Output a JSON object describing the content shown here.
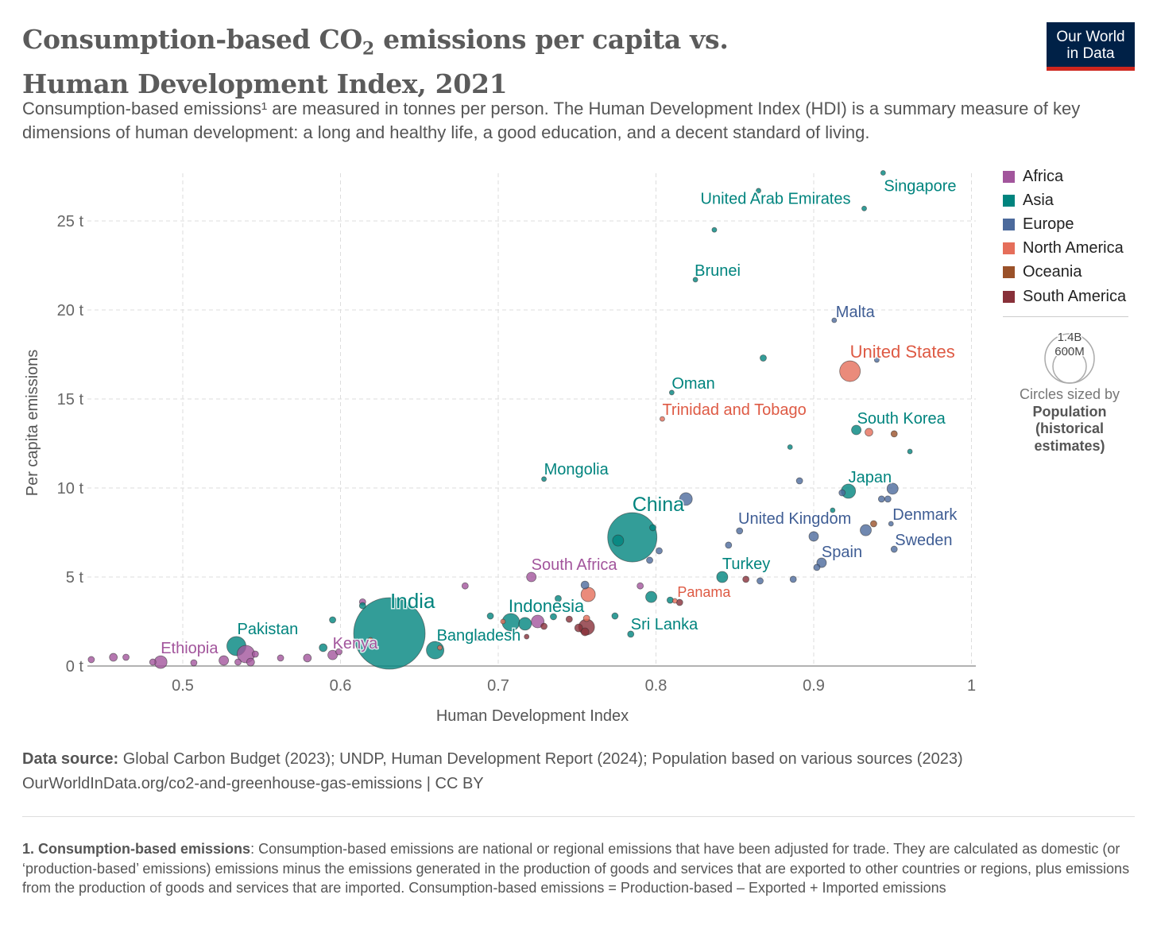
{
  "header": {
    "title_part1": "Consumption-based CO",
    "title_sub": "2",
    "title_part2": " emissions per capita vs. Human Development Index, 2021",
    "subtitle": "Consumption-based emissions¹ are measured in tonnes per person. The Human Development Index (HDI) is a summary measure of key dimensions of human development: a long and healthy life, a good education, and a decent standard of living.",
    "logo_line1": "Our World",
    "logo_line2": "in Data"
  },
  "legend": {
    "items": [
      {
        "label": "Africa",
        "color": "#a2559c"
      },
      {
        "label": "Asia",
        "color": "#00847e"
      },
      {
        "label": "Europe",
        "color": "#4c6a9c"
      },
      {
        "label": "North America",
        "color": "#e56e5a"
      },
      {
        "label": "Oceania",
        "color": "#9a5129"
      },
      {
        "label": "South America",
        "color": "#883039"
      }
    ],
    "size_big": "1.4B",
    "size_small": "600M",
    "size_caption": "Circles sized by",
    "size_var1": "Population",
    "size_var2": "(historical",
    "size_var3": "estimates)"
  },
  "footer": {
    "source_label": "Data source:",
    "source_text": " Global Carbon Budget (2023); UNDP, Human Development Report (2024); Population based on various sources (2023)",
    "url_line": "OurWorldInData.org/co2-and-greenhouse-gas-emissions | CC BY",
    "footnote_label": "1. Consumption-based emissions",
    "footnote_text": ": Consumption-based emissions are national or regional emissions that have been adjusted for trade. They are calculated as domestic (or ‘production-based’ emissions) emissions minus the emissions generated in the production of goods and services that are exported to other countries or regions, plus emissions from the production of goods and services that are imported. Consumption-based emissions = Production-based – Exported + Imported emissions"
  },
  "chart_data": {
    "type": "scatter",
    "xlabel": "Human Development Index",
    "ylabel": "Per capita emissions",
    "xlim": [
      0.445,
      1.0
    ],
    "ylim": [
      0,
      27.8
    ],
    "xticks": [
      0.5,
      0.6,
      0.7,
      0.8,
      0.9,
      1.0
    ],
    "xtick_labels": [
      "0.5",
      "0.6",
      "0.7",
      "0.8",
      "0.9",
      "1"
    ],
    "yticks": [
      0,
      5,
      10,
      15,
      20,
      25
    ],
    "ytick_labels": [
      "0 t",
      "5 t",
      "10 t",
      "15 t",
      "20 t",
      "25 t"
    ],
    "grid": true,
    "legend_position": "right",
    "size_variable": "population (millions, estimated)",
    "points": [
      {
        "r": "Africa",
        "x": 0.442,
        "y": 0.36,
        "p": 11
      },
      {
        "r": "Africa",
        "x": 0.456,
        "y": 0.49,
        "p": 17
      },
      {
        "r": "Africa",
        "x": 0.464,
        "y": 0.49,
        "p": 11
      },
      {
        "r": "Africa",
        "x": 0.481,
        "y": 0.22,
        "p": 11
      },
      {
        "r": "Africa",
        "x": 0.486,
        "y": 0.22,
        "p": 44,
        "n": "Ethiopia"
      },
      {
        "r": "Africa",
        "x": 0.507,
        "y": 0.18,
        "p": 11
      },
      {
        "r": "Africa",
        "x": 0.526,
        "y": 0.31,
        "p": 25
      },
      {
        "r": "Africa",
        "x": 0.535,
        "y": 0.22,
        "p": 11
      },
      {
        "r": "Africa",
        "x": 0.54,
        "y": 0.67,
        "p": 84
      },
      {
        "r": "Africa",
        "x": 0.543,
        "y": 0.22,
        "p": 17
      },
      {
        "r": "Africa",
        "x": 0.546,
        "y": 0.67,
        "p": 11
      },
      {
        "r": "Africa",
        "x": 0.562,
        "y": 0.45,
        "p": 11
      },
      {
        "r": "Africa",
        "x": 0.579,
        "y": 0.45,
        "p": 17
      },
      {
        "r": "Africa",
        "x": 0.595,
        "y": 0.62,
        "p": 25,
        "n": "Kenya"
      },
      {
        "r": "Africa",
        "x": 0.599,
        "y": 0.8,
        "p": 11
      },
      {
        "r": "Africa",
        "x": 0.614,
        "y": 3.6,
        "p": 11
      },
      {
        "r": "Africa",
        "x": 0.679,
        "y": 4.5,
        "p": 11
      },
      {
        "r": "Africa",
        "x": 0.687,
        "y": 1.56,
        "p": 6
      },
      {
        "r": "Africa",
        "x": 0.721,
        "y": 5.0,
        "p": 25,
        "n": "South Africa"
      },
      {
        "r": "Africa",
        "x": 0.725,
        "y": 2.5,
        "p": 44
      },
      {
        "r": "Africa",
        "x": 0.79,
        "y": 4.5,
        "p": 11
      },
      {
        "r": "Asia",
        "x": 0.534,
        "y": 1.12,
        "p": 100,
        "n": "Pakistan"
      },
      {
        "r": "Asia",
        "x": 0.589,
        "y": 1.03,
        "p": 17
      },
      {
        "r": "Asia",
        "x": 0.595,
        "y": 2.59,
        "p": 11
      },
      {
        "r": "Asia",
        "x": 0.614,
        "y": 3.39,
        "p": 11
      },
      {
        "r": "Asia",
        "x": 0.631,
        "y": 1.83,
        "p": 1400,
        "n": "India"
      },
      {
        "r": "Asia",
        "x": 0.66,
        "y": 0.89,
        "p": 84,
        "n": "Bangladesh"
      },
      {
        "r": "Asia",
        "x": 0.695,
        "y": 2.81,
        "p": 11
      },
      {
        "r": "Asia",
        "x": 0.708,
        "y": 2.46,
        "p": 84,
        "n": "Indonesia"
      },
      {
        "r": "Asia",
        "x": 0.717,
        "y": 2.37,
        "p": 44
      },
      {
        "r": "Asia",
        "x": 0.735,
        "y": 2.77,
        "p": 11
      },
      {
        "r": "Asia",
        "x": 0.738,
        "y": 3.79,
        "p": 11
      },
      {
        "r": "Asia",
        "x": 0.774,
        "y": 2.81,
        "p": 11
      },
      {
        "r": "Asia",
        "x": 0.784,
        "y": 1.79,
        "p": 11,
        "n": "Sri Lanka"
      },
      {
        "r": "Asia",
        "x": 0.797,
        "y": 3.88,
        "p": 34
      },
      {
        "r": "Asia",
        "x": 0.809,
        "y": 3.7,
        "p": 11
      },
      {
        "r": "Asia",
        "x": 0.785,
        "y": 7.23,
        "p": 664,
        "n": "China"
      },
      {
        "r": "Asia",
        "x": 0.776,
        "y": 7.05,
        "p": 34
      },
      {
        "r": "Asia",
        "x": 0.798,
        "y": 7.77,
        "p": 11
      },
      {
        "r": "Asia",
        "x": 0.729,
        "y": 10.5,
        "p": 6,
        "n": "Mongolia"
      },
      {
        "r": "Asia",
        "x": 0.81,
        "y": 15.36,
        "p": 6,
        "n": "Oman"
      },
      {
        "r": "Asia",
        "x": 0.825,
        "y": 21.7,
        "p": 6,
        "n": "Brunei"
      },
      {
        "r": "Asia",
        "x": 0.837,
        "y": 24.5,
        "p": 6
      },
      {
        "r": "Asia",
        "x": 0.865,
        "y": 26.7,
        "p": 6
      },
      {
        "r": "Asia",
        "x": 0.932,
        "y": 25.7,
        "p": 6,
        "n": "United Arab Emirates"
      },
      {
        "r": "Asia",
        "x": 0.944,
        "y": 27.7,
        "p": 6,
        "n": "Singapore"
      },
      {
        "r": "Asia",
        "x": 0.868,
        "y": 17.3,
        "p": 11
      },
      {
        "r": "Asia",
        "x": 0.885,
        "y": 12.3,
        "p": 6
      },
      {
        "r": "Asia",
        "x": 0.927,
        "y": 13.26,
        "p": 25,
        "n": "South Korea"
      },
      {
        "r": "Asia",
        "x": 0.961,
        "y": 12.05,
        "p": 6
      },
      {
        "r": "Asia",
        "x": 0.922,
        "y": 9.82,
        "p": 56,
        "n": "Japan"
      },
      {
        "r": "Asia",
        "x": 0.912,
        "y": 8.75,
        "p": 6
      },
      {
        "r": "Asia",
        "x": 0.842,
        "y": 5.0,
        "p": 34,
        "n": "Turkey"
      },
      {
        "r": "Europe",
        "x": 0.819,
        "y": 9.38,
        "p": 44
      },
      {
        "r": "Europe",
        "x": 0.802,
        "y": 6.47,
        "p": 11
      },
      {
        "r": "Europe",
        "x": 0.796,
        "y": 5.94,
        "p": 11
      },
      {
        "r": "Europe",
        "x": 0.755,
        "y": 4.55,
        "p": 17
      },
      {
        "r": "Europe",
        "x": 0.853,
        "y": 7.59,
        "p": 11
      },
      {
        "r": "Europe",
        "x": 0.846,
        "y": 6.79,
        "p": 11
      },
      {
        "r": "Europe",
        "x": 0.9,
        "y": 7.28,
        "p": 25,
        "n": "United Kingdom"
      },
      {
        "r": "Europe",
        "x": 0.866,
        "y": 4.78,
        "p": 11
      },
      {
        "r": "Europe",
        "x": 0.887,
        "y": 4.87,
        "p": 11
      },
      {
        "r": "Europe",
        "x": 0.891,
        "y": 10.4,
        "p": 11
      },
      {
        "r": "Europe",
        "x": 0.918,
        "y": 9.73,
        "p": 11
      },
      {
        "r": "Europe",
        "x": 0.95,
        "y": 9.96,
        "p": 34
      },
      {
        "r": "Europe",
        "x": 0.943,
        "y": 9.38,
        "p": 11
      },
      {
        "r": "Europe",
        "x": 0.947,
        "y": 9.38,
        "p": 11
      },
      {
        "r": "Europe",
        "x": 0.933,
        "y": 7.63,
        "p": 34
      },
      {
        "r": "Europe",
        "x": 0.949,
        "y": 7.99,
        "p": 6,
        "n": "Denmark"
      },
      {
        "r": "Europe",
        "x": 0.951,
        "y": 6.56,
        "p": 11,
        "n": "Sweden"
      },
      {
        "r": "Europe",
        "x": 0.905,
        "y": 5.8,
        "p": 25,
        "n": "Spain"
      },
      {
        "r": "Europe",
        "x": 0.902,
        "y": 5.54,
        "p": 11
      },
      {
        "r": "Europe",
        "x": 0.913,
        "y": 19.42,
        "p": 6,
        "n": "Malta"
      },
      {
        "r": "Europe",
        "x": 0.94,
        "y": 17.19,
        "p": 6
      },
      {
        "r": "North America",
        "x": 0.923,
        "y": 16.56,
        "p": 117,
        "n": "United States"
      },
      {
        "r": "North America",
        "x": 0.935,
        "y": 13.13,
        "p": 17
      },
      {
        "r": "North America",
        "x": 0.804,
        "y": 13.88,
        "p": 6,
        "n": "Trinidad and Tobago"
      },
      {
        "r": "North America",
        "x": 0.757,
        "y": 4.02,
        "p": 56
      },
      {
        "r": "North America",
        "x": 0.756,
        "y": 2.68,
        "p": 11
      },
      {
        "r": "North America",
        "x": 0.703,
        "y": 2.5,
        "p": 6
      },
      {
        "r": "North America",
        "x": 0.663,
        "y": 1.03,
        "p": 6
      },
      {
        "r": "North America",
        "x": 0.619,
        "y": 1.47,
        "p": 6
      },
      {
        "r": "North America",
        "x": 0.812,
        "y": 3.66,
        "p": 6,
        "n": "Panama"
      },
      {
        "r": "Oceania",
        "x": 0.951,
        "y": 13.04,
        "p": 11
      },
      {
        "r": "Oceania",
        "x": 0.938,
        "y": 7.99,
        "p": 11
      },
      {
        "r": "South America",
        "x": 0.756,
        "y": 2.19,
        "p": 69
      },
      {
        "r": "South America",
        "x": 0.751,
        "y": 2.14,
        "p": 17
      },
      {
        "r": "South America",
        "x": 0.755,
        "y": 1.92,
        "p": 17
      },
      {
        "r": "South America",
        "x": 0.745,
        "y": 2.63,
        "p": 11
      },
      {
        "r": "South America",
        "x": 0.729,
        "y": 2.23,
        "p": 11
      },
      {
        "r": "South America",
        "x": 0.857,
        "y": 4.87,
        "p": 11
      },
      {
        "r": "South America",
        "x": 0.815,
        "y": 3.57,
        "p": 11
      },
      {
        "r": "South America",
        "x": 0.718,
        "y": 1.65,
        "p": 6
      }
    ]
  }
}
